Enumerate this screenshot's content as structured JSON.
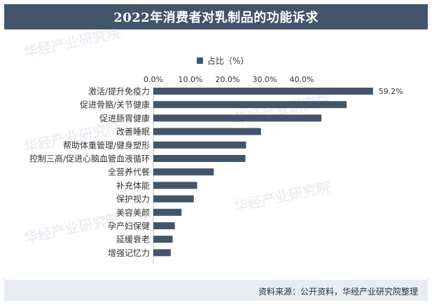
{
  "header": {
    "title": "2022年消费者对乳制品的功能诉求"
  },
  "footer": {
    "source": "资料来源：公开资料，华经产业研究院整理"
  },
  "watermark": {
    "text": "华经产业研究院",
    "url": "www.huaon.com"
  },
  "chart_data": {
    "type": "bar",
    "orientation": "horizontal",
    "title": "2022年消费者对乳制品的功能诉求",
    "series": [
      {
        "name": "占比（%）",
        "color": "#44546a",
        "values": [
          59.2,
          52.1,
          45.3,
          29.0,
          25.0,
          24.8,
          16.3,
          11.8,
          10.9,
          7.6,
          5.8,
          5.2,
          4.7
        ]
      }
    ],
    "categories": [
      "激活/提升免疫力",
      "促进骨骼/关节健康",
      "促进肠胃健康",
      "改善睡眠",
      "帮助体重管理/健身塑形",
      "控制三高/促进心脑血管血液循环",
      "全营养代餐",
      "补充体能",
      "保护视力",
      "美容美颜",
      "孕产妇保健",
      "延缓衰老",
      "增强记忆力"
    ],
    "data_labels": {
      "0": "59.2%"
    },
    "x_ticks": [
      "0.0%",
      "10.0%",
      "20.0%",
      "30.0%",
      "40.0%"
    ],
    "xlim": [
      0,
      70
    ],
    "legend_position": "top",
    "grid": false
  }
}
